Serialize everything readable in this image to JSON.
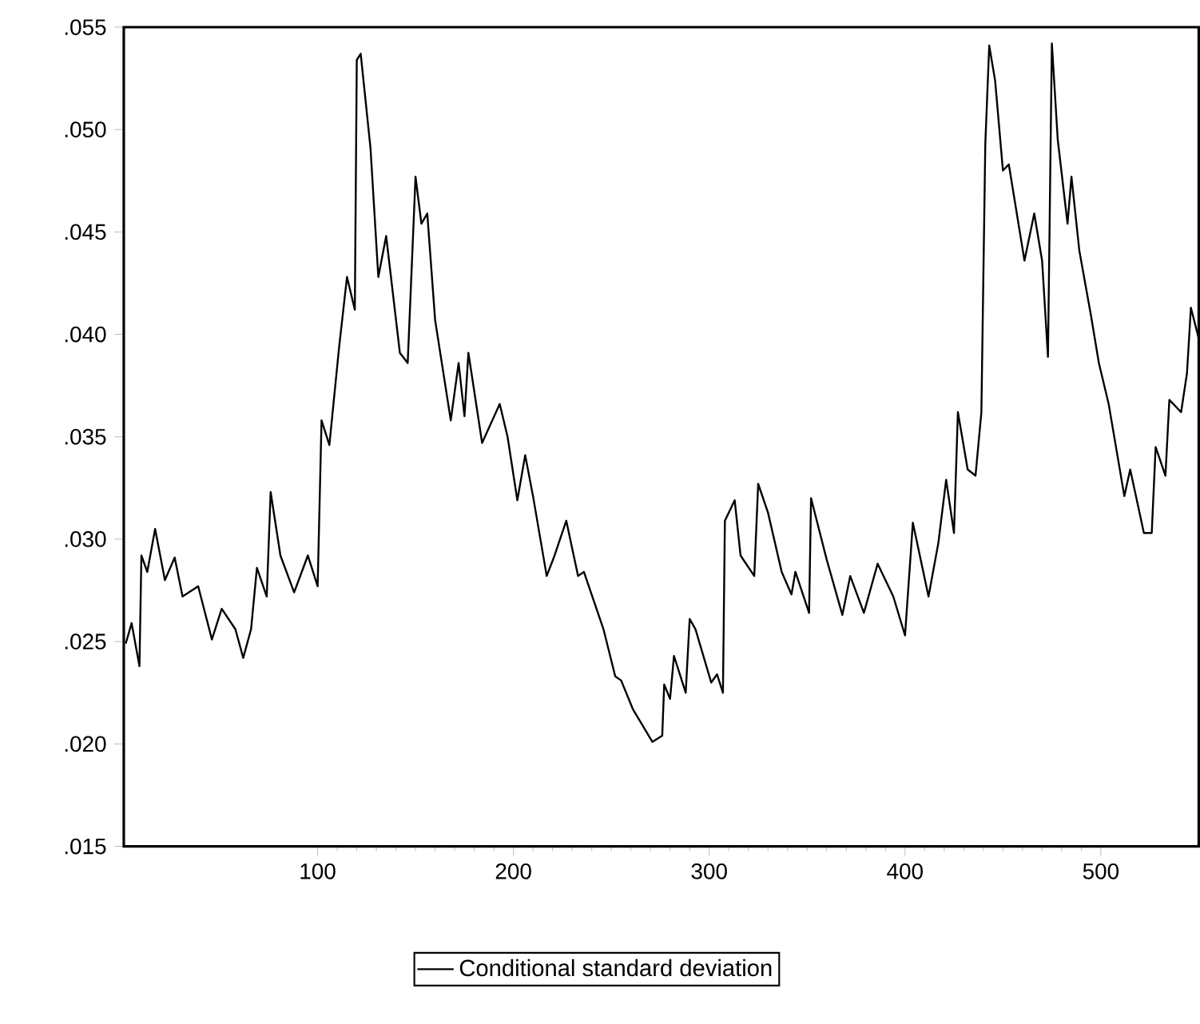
{
  "chart_data": {
    "type": "line",
    "x": [
      2,
      5,
      9,
      10,
      13,
      17,
      22,
      27,
      31,
      39,
      46,
      51,
      58,
      62,
      66,
      69,
      74,
      76,
      81,
      88,
      95,
      100,
      102,
      106,
      111,
      115,
      119,
      120,
      122,
      127,
      131,
      135,
      142,
      146,
      150,
      153,
      156,
      160,
      168,
      172,
      175,
      177,
      184,
      193,
      197,
      202,
      206,
      210,
      217,
      221,
      227,
      233,
      236,
      246,
      252,
      255,
      261,
      271,
      276,
      277,
      280,
      282,
      288,
      290,
      293,
      301,
      304,
      307,
      308,
      313,
      316,
      323,
      325,
      330,
      337,
      342,
      344,
      351,
      352,
      360,
      368,
      372,
      379,
      386,
      394,
      400,
      404,
      412,
      417,
      421,
      425,
      427,
      432,
      436,
      439,
      441,
      443,
      446,
      450,
      453,
      461,
      466,
      470,
      473,
      475,
      478,
      483,
      485,
      489,
      495,
      499,
      504,
      512,
      515,
      522,
      526,
      528,
      533,
      535,
      541,
      544,
      546,
      550
    ],
    "series": [
      {
        "name": "Conditional standard deviation",
        "color": "#000000",
        "values": [
          0.0249,
          0.0259,
          0.0238,
          0.0292,
          0.0284,
          0.0305,
          0.028,
          0.0291,
          0.0272,
          0.0277,
          0.0251,
          0.0266,
          0.0256,
          0.0242,
          0.0256,
          0.0286,
          0.0272,
          0.0323,
          0.0292,
          0.0274,
          0.0292,
          0.0277,
          0.0358,
          0.0346,
          0.0394,
          0.0428,
          0.0412,
          0.0534,
          0.0537,
          0.0491,
          0.0428,
          0.0448,
          0.0391,
          0.0386,
          0.0477,
          0.0454,
          0.0459,
          0.0407,
          0.0358,
          0.0386,
          0.036,
          0.0391,
          0.0347,
          0.0366,
          0.035,
          0.0319,
          0.0341,
          0.0321,
          0.0282,
          0.0292,
          0.0309,
          0.0282,
          0.0284,
          0.0256,
          0.0233,
          0.0231,
          0.0217,
          0.0201,
          0.0204,
          0.0229,
          0.0222,
          0.0243,
          0.0225,
          0.0261,
          0.0256,
          0.023,
          0.0234,
          0.0225,
          0.0309,
          0.0319,
          0.0292,
          0.0282,
          0.0327,
          0.0313,
          0.0284,
          0.0273,
          0.0284,
          0.0264,
          0.032,
          0.029,
          0.0263,
          0.0282,
          0.0264,
          0.0288,
          0.0272,
          0.0253,
          0.0308,
          0.0272,
          0.0298,
          0.0329,
          0.0303,
          0.0362,
          0.0334,
          0.0331,
          0.0362,
          0.0493,
          0.0541,
          0.0524,
          0.048,
          0.0483,
          0.0436,
          0.0459,
          0.0436,
          0.0389,
          0.0542,
          0.0495,
          0.0454,
          0.0477,
          0.0441,
          0.0409,
          0.0386,
          0.0366,
          0.0321,
          0.0334,
          0.0303,
          0.0303,
          0.0345,
          0.0331,
          0.0368,
          0.0362,
          0.0381,
          0.0413,
          0.0398
        ]
      }
    ],
    "xlim": [
      1,
      550
    ],
    "xticks": [
      100,
      200,
      300,
      400,
      500
    ],
    "ylim": [
      0.015,
      0.055
    ],
    "yticks": [
      {
        "value": 0.015,
        "label": ".015"
      },
      {
        "value": 0.02,
        "label": ".020"
      },
      {
        "value": 0.025,
        "label": ".025"
      },
      {
        "value": 0.03,
        "label": ".030"
      },
      {
        "value": 0.035,
        "label": ".035"
      },
      {
        "value": 0.04,
        "label": ".040"
      },
      {
        "value": 0.045,
        "label": ".045"
      },
      {
        "value": 0.05,
        "label": ".050"
      },
      {
        "value": 0.055,
        "label": ".055"
      }
    ],
    "legend": "bottom",
    "grid": false,
    "line_style": "solid",
    "marker": "none"
  }
}
